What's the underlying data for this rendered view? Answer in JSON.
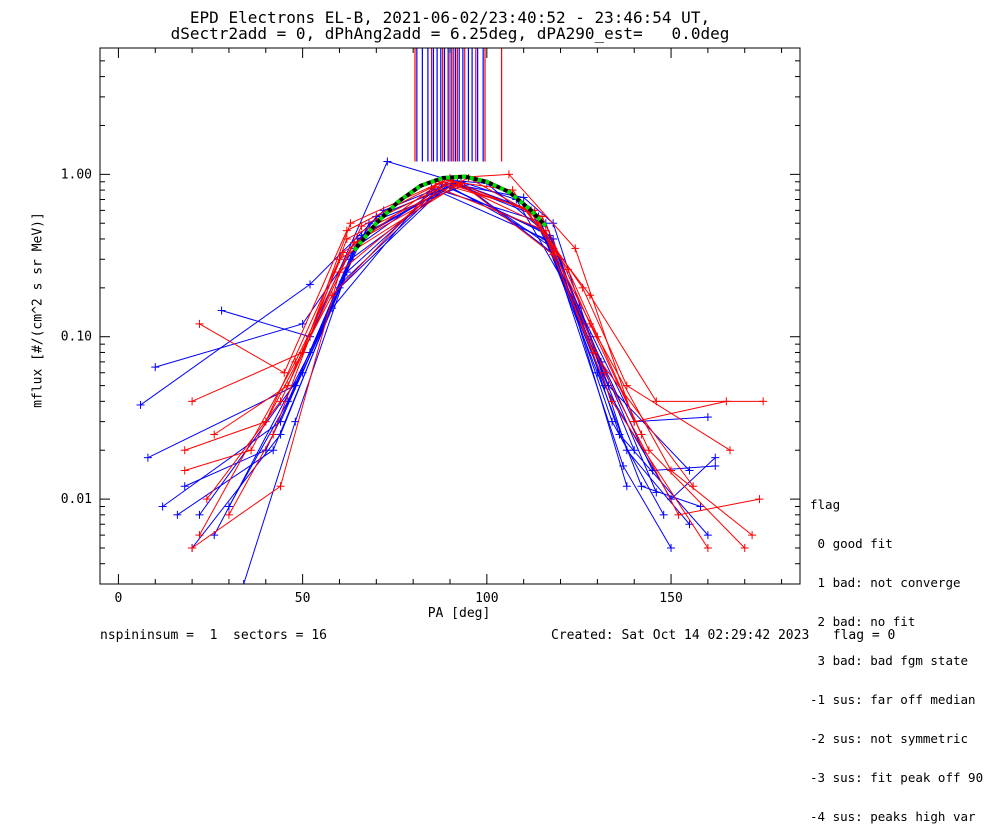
{
  "title_line1": "EPD Electrons EL-B, 2021-06-02/23:40:52 - 23:46:54 UT,",
  "title_line2": "dSectr2add = 0, dPhAng2add = 6.25deg, dPA290_est=   0.0deg",
  "footer_left": "nspininsum =  1  sectors = 16",
  "footer_right": "Created: Sat Oct 14 02:29:42 2023   flag = 0",
  "legend": {
    "title": "flag",
    "entries": [
      " 0 good fit",
      " 1 bad: not converge",
      " 2 bad: no fit",
      " 3 bad: bad fgm state",
      "-1 sus: far off median",
      "-2 sus: not symmetric",
      "-3 sus: fit peak off 90",
      "-4 sus: peaks high var"
    ]
  },
  "colors": {
    "red": "#ff0000",
    "blue": "#0000ff",
    "green": "#00dd00",
    "black": "#000000"
  },
  "chart_data": {
    "type": "line",
    "title": "EPD Electrons EL-B, 2021-06-02/23:40:52 - 23:46:54 UT,",
    "subtitle": "dSectr2add = 0, dPhAng2add = 6.25deg, dPA290_est=   0.0deg",
    "xlabel": "PA [deg]",
    "ylabel": "mflux [#/(cm^2 s sr MeV)]",
    "xlim": [
      -5,
      185
    ],
    "ylim": [
      0.003,
      6
    ],
    "yscale": "log",
    "x_ticks": [
      0,
      50,
      100,
      150
    ],
    "x_tick_labels": [
      "0",
      "50",
      "100",
      "150"
    ],
    "y_ticks": [
      0.01,
      0.1,
      1.0
    ],
    "y_tick_labels": [
      "0.01",
      "0.10",
      "1.00"
    ],
    "series": [
      {
        "color": "blue",
        "style": "line+plus",
        "curves": [
          [
            [
              6,
              0.038
            ],
            [
              52,
              0.21
            ],
            [
              72,
              0.6
            ],
            [
              90,
              0.88
            ],
            [
              110,
              0.72
            ],
            [
              118,
              0.5
            ],
            [
              138,
              0.02
            ],
            [
              155,
              0.007
            ]
          ],
          [
            [
              8,
              0.018
            ],
            [
              48,
              0.05
            ],
            [
              64,
              0.35
            ],
            [
              90,
              0.92
            ],
            [
              112,
              0.6
            ],
            [
              128,
              0.1
            ],
            [
              145,
              0.015
            ],
            [
              162,
              0.016
            ]
          ],
          [
            [
              12,
              0.009
            ],
            [
              44,
              0.03
            ],
            [
              62,
              0.25
            ],
            [
              88,
              0.86
            ],
            [
              115,
              0.45
            ],
            [
              130,
              0.06
            ],
            [
              142,
              0.012
            ],
            [
              158,
              0.009
            ]
          ],
          [
            [
              18,
              0.012
            ],
            [
              40,
              0.02
            ],
            [
              58,
              0.15
            ],
            [
              85,
              0.82
            ],
            [
              116,
              0.4
            ],
            [
              132,
              0.05
            ],
            [
              150,
              0.01
            ],
            [
              162,
              0.018
            ]
          ],
          [
            [
              22,
              0.008
            ],
            [
              50,
              0.06
            ],
            [
              66,
              0.42
            ],
            [
              92,
              0.9
            ],
            [
              118,
              0.35
            ],
            [
              134,
              0.03
            ],
            [
              148,
              0.008
            ]
          ],
          [
            [
              26,
              0.006
            ],
            [
              52,
              0.08
            ],
            [
              68,
              0.5
            ],
            [
              94,
              0.86
            ],
            [
              120,
              0.3
            ],
            [
              136,
              0.025
            ],
            [
              160,
              0.006
            ]
          ],
          [
            [
              30,
              0.009
            ],
            [
              46,
              0.04
            ],
            [
              63,
              0.3
            ],
            [
              91,
              0.88
            ],
            [
              114,
              0.55
            ],
            [
              126,
              0.12
            ],
            [
              140,
              0.02
            ]
          ],
          [
            [
              20,
              0.005
            ],
            [
              44,
              0.025
            ],
            [
              60,
              0.2
            ],
            [
              89,
              0.85
            ],
            [
              117,
              0.42
            ],
            [
              131,
              0.07
            ],
            [
              146,
              0.011
            ]
          ],
          [
            [
              10,
              0.065
            ],
            [
              50,
              0.12
            ],
            [
              70,
              0.55
            ],
            [
              93,
              0.9
            ],
            [
              108,
              0.7
            ],
            [
              125,
              0.15
            ],
            [
              140,
              0.03
            ],
            [
              160,
              0.032
            ]
          ],
          [
            [
              28,
              0.145
            ],
            [
              52,
              0.1
            ],
            [
              73,
              1.2
            ],
            [
              90,
              0.92
            ],
            [
              100,
              0.88
            ],
            [
              118,
              0.4
            ],
            [
              138,
              0.012
            ]
          ],
          [
            [
              34,
              0.003
            ],
            [
              48,
              0.03
            ],
            [
              65,
              0.4
            ],
            [
              90,
              0.84
            ],
            [
              117,
              0.38
            ],
            [
              137,
              0.016
            ],
            [
              150,
              0.005
            ]
          ],
          [
            [
              16,
              0.008
            ],
            [
              42,
              0.02
            ],
            [
              61,
              0.22
            ],
            [
              87,
              0.8
            ],
            [
              116,
              0.5
            ],
            [
              133,
              0.05
            ],
            [
              155,
              0.015
            ]
          ]
        ]
      },
      {
        "color": "red",
        "style": "line+plus",
        "curves": [
          [
            [
              20,
              0.04
            ],
            [
              50,
              0.08
            ],
            [
              63,
              0.5
            ],
            [
              90,
              0.95
            ],
            [
              106,
              1.0
            ],
            [
              124,
              0.35
            ],
            [
              140,
              0.03
            ],
            [
              165,
              0.04
            ]
          ],
          [
            [
              22,
              0.12
            ],
            [
              45,
              0.06
            ],
            [
              62,
              0.45
            ],
            [
              88,
              0.9
            ],
            [
              110,
              0.62
            ],
            [
              128,
              0.18
            ],
            [
              146,
              0.04
            ],
            [
              175,
              0.04
            ]
          ],
          [
            [
              18,
              0.02
            ],
            [
              40,
              0.03
            ],
            [
              60,
              0.3
            ],
            [
              92,
              0.86
            ],
            [
              114,
              0.5
            ],
            [
              130,
              0.1
            ],
            [
              150,
              0.015
            ],
            [
              172,
              0.006
            ]
          ],
          [
            [
              18,
              0.015
            ],
            [
              36,
              0.02
            ],
            [
              58,
              0.18
            ],
            [
              86,
              0.84
            ],
            [
              116,
              0.45
            ],
            [
              132,
              0.06
            ],
            [
              152,
              0.008
            ],
            [
              174,
              0.01
            ]
          ],
          [
            [
              24,
              0.01
            ],
            [
              44,
              0.04
            ],
            [
              64,
              0.38
            ],
            [
              93,
              0.88
            ],
            [
              118,
              0.32
            ],
            [
              134,
              0.04
            ],
            [
              160,
              0.005
            ]
          ],
          [
            [
              20,
              0.005
            ],
            [
              44,
              0.012
            ],
            [
              60,
              0.25
            ],
            [
              90,
              0.92
            ],
            [
              115,
              0.55
            ],
            [
              128,
              0.12
            ],
            [
              144,
              0.02
            ],
            [
              170,
              0.005
            ]
          ],
          [
            [
              30,
              0.008
            ],
            [
              42,
              0.025
            ],
            [
              62,
              0.4
            ],
            [
              95,
              0.95
            ],
            [
              112,
              0.58
            ],
            [
              126,
              0.2
            ],
            [
              138,
              0.05
            ],
            [
              166,
              0.02
            ]
          ],
          [
            [
              22,
              0.006
            ],
            [
              48,
              0.07
            ],
            [
              66,
              0.48
            ],
            [
              91,
              0.9
            ],
            [
              107,
              0.8
            ],
            [
              122,
              0.26
            ],
            [
              142,
              0.025
            ]
          ],
          [
            [
              26,
              0.025
            ],
            [
              46,
              0.05
            ],
            [
              61,
              0.33
            ],
            [
              87,
              0.88
            ],
            [
              113,
              0.6
            ],
            [
              129,
              0.08
            ],
            [
              156,
              0.012
            ]
          ]
        ]
      },
      {
        "name": "",
        "color": "green",
        "style": "dotted-thick",
        "x": [
          64,
          70,
          76,
          82,
          88,
          94,
          100,
          106,
          112,
          116
        ],
        "y": [
          0.34,
          0.5,
          0.68,
          0.85,
          0.95,
          0.97,
          0.9,
          0.78,
          0.6,
          0.48
        ]
      }
    ],
    "vertical_markers": {
      "y_from": 1.2,
      "y_to": 6,
      "red_x": [
        80.5,
        85,
        88,
        90,
        91,
        92,
        94,
        97,
        99.5,
        104
      ],
      "blue_x": [
        81,
        82.5,
        84,
        85.5,
        86.5,
        87.5,
        88.5,
        89.5,
        90.5,
        91.5,
        92.5,
        93.5,
        95,
        96,
        97.5,
        99
      ]
    }
  }
}
